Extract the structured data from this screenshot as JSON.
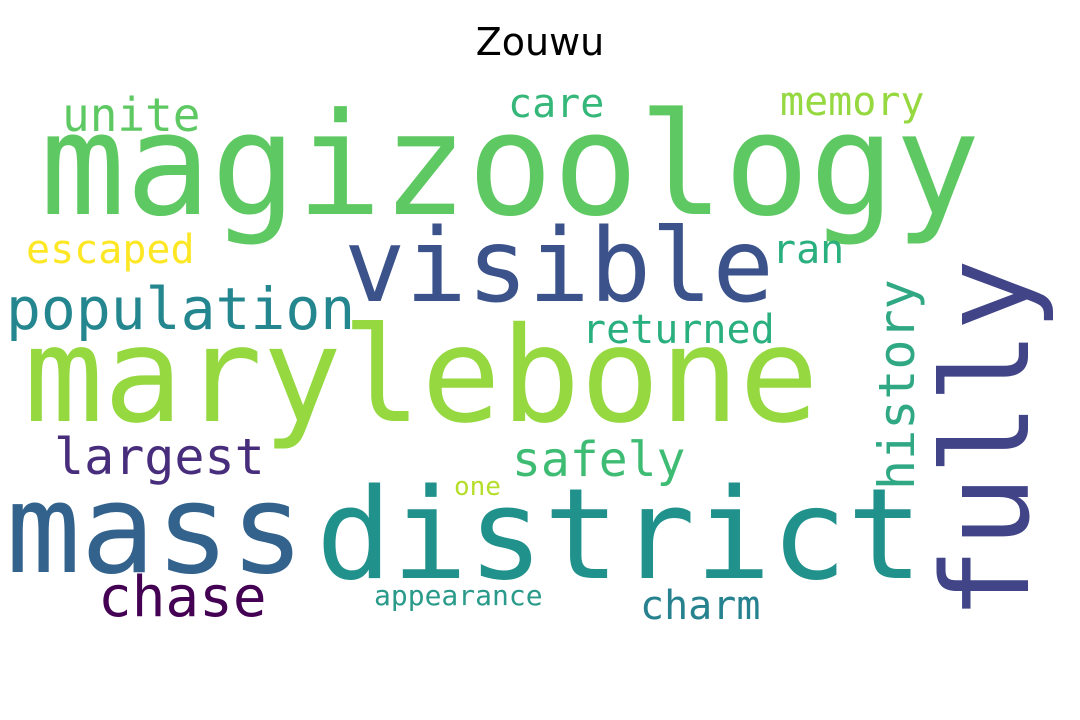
{
  "title": "Zouwu",
  "words": [
    {
      "text": "magizoology",
      "color": "#5ec962"
    },
    {
      "text": "marylebone",
      "color": "#95d840"
    },
    {
      "text": "district",
      "color": "#21918c"
    },
    {
      "text": "mass",
      "color": "#33638d"
    },
    {
      "text": "visible",
      "color": "#3b528b"
    },
    {
      "text": "fully",
      "color": "#414487"
    },
    {
      "text": "population",
      "color": "#24868e"
    },
    {
      "text": "chase",
      "color": "#440154"
    },
    {
      "text": "largest",
      "color": "#472d7b"
    },
    {
      "text": "safely",
      "color": "#3fbc73"
    },
    {
      "text": "history",
      "color": "#31a884"
    },
    {
      "text": "returned",
      "color": "#2ab07f"
    },
    {
      "text": "unite",
      "color": "#5ec962"
    },
    {
      "text": "care",
      "color": "#35b779"
    },
    {
      "text": "memory",
      "color": "#95d840"
    },
    {
      "text": "escaped",
      "color": "#fde725"
    },
    {
      "text": "ran",
      "color": "#2ab07f"
    },
    {
      "text": "charm",
      "color": "#26828e"
    },
    {
      "text": "appearance",
      "color": "#2a9a8a"
    },
    {
      "text": "one",
      "color": "#b5de2b"
    }
  ]
}
